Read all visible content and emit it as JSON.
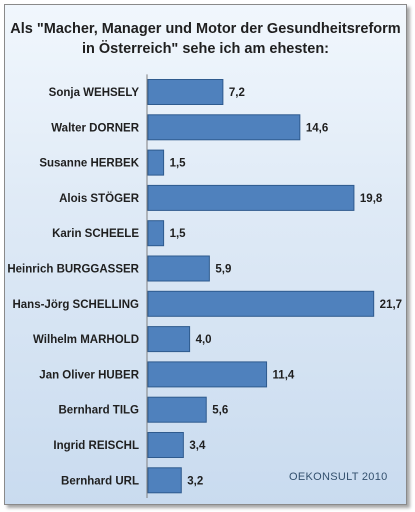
{
  "title_line1": "Als \"Macher, Manager und Motor der Gesundheitsreform",
  "title_line2": "in Österreich\" sehe ich am ehesten:",
  "watermark": "OEKONSULT 2010",
  "colors": {
    "bar": "#4f81bd",
    "bar_edge": "#2e5a8e",
    "background_top": "#f1f7fd",
    "background_bottom": "#c9dbef"
  },
  "chart_data": {
    "type": "bar",
    "orientation": "horizontal",
    "title": "Als \"Macher, Manager und Motor der Gesundheitsreform in Österreich\" sehe ich am ehesten:",
    "xlim": [
      0,
      22
    ],
    "grid": false,
    "categories": [
      "Sonja WEHSELY",
      "Walter DORNER",
      "Susanne HERBEK",
      "Alois STÖGER",
      "Karin SCHEELE",
      "Heinrich BURGGASSER",
      "Hans-Jörg SCHELLING",
      "Wilhelm MARHOLD",
      "Jan Oliver HUBER",
      "Bernhard TILG",
      "Ingrid REISCHL",
      "Bernhard URL"
    ],
    "values": [
      7.2,
      14.6,
      1.5,
      19.8,
      1.5,
      5.9,
      21.7,
      4.0,
      11.4,
      5.6,
      3.4,
      3.2
    ],
    "value_labels": [
      "7,2",
      "14,6",
      "1,5",
      "19,8",
      "1,5",
      "5,9",
      "21,7",
      "4,0",
      "11,4",
      "5,6",
      "3,4",
      "3,2"
    ]
  }
}
